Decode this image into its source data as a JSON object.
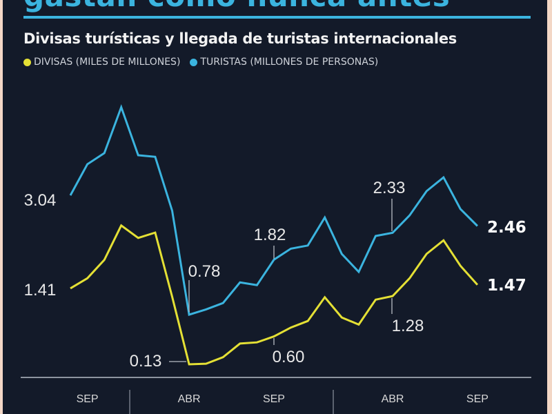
{
  "header": {
    "title": "gastan como nunca antes",
    "subtitle": "Divisas turísticas y llegada de turistas internacionales"
  },
  "colors": {
    "background": "#131a29",
    "divisas": "#e4e035",
    "turistas": "#3bb4df",
    "accent": "#3bb4df"
  },
  "chart_data": {
    "type": "line",
    "title": "Divisas turísticas y llegada de turistas internacionales",
    "grid": false,
    "legend_placement": "top-left",
    "x_ticks": [
      {
        "label": "SEP",
        "at": 1
      },
      {
        "label": "ABR",
        "at": 7
      },
      {
        "label": "SEP",
        "at": 12
      },
      {
        "label": "ABR",
        "at": 19
      },
      {
        "label": "SEP",
        "at": 24
      }
    ],
    "year_dividers_after": [
      3,
      15
    ],
    "series": [
      {
        "name": "DIVISAS (MILES DE MILLONES)",
        "color": "#e4e035",
        "values": [
          1.41,
          1.58,
          1.89,
          2.47,
          2.26,
          2.35,
          1.27,
          0.13,
          0.14,
          0.25,
          0.48,
          0.5,
          0.6,
          0.75,
          0.86,
          1.26,
          0.92,
          0.8,
          1.22,
          1.28,
          1.58,
          1.99,
          2.22,
          1.79,
          1.47
        ],
        "annotations": [
          {
            "index": 0,
            "text": "1.41"
          },
          {
            "index": 7,
            "text": "0.13"
          },
          {
            "index": 12,
            "text": "0.60"
          },
          {
            "index": 19,
            "text": "1.28"
          },
          {
            "index": 24,
            "text": "1.47"
          }
        ]
      },
      {
        "name": "TURISTAS (MILLONES DE PERSONAS)",
        "color": "#3bb4df",
        "values": [
          3.04,
          3.63,
          3.84,
          4.71,
          3.8,
          3.77,
          2.75,
          0.78,
          0.88,
          1.0,
          1.39,
          1.34,
          1.82,
          2.03,
          2.09,
          2.62,
          1.93,
          1.59,
          2.27,
          2.33,
          2.66,
          3.12,
          3.38,
          2.78,
          2.46
        ],
        "annotations": [
          {
            "index": 0,
            "text": "3.04"
          },
          {
            "index": 7,
            "text": "0.78"
          },
          {
            "index": 12,
            "text": "1.82"
          },
          {
            "index": 19,
            "text": "2.33"
          },
          {
            "index": 24,
            "text": "2.46"
          }
        ]
      }
    ]
  }
}
